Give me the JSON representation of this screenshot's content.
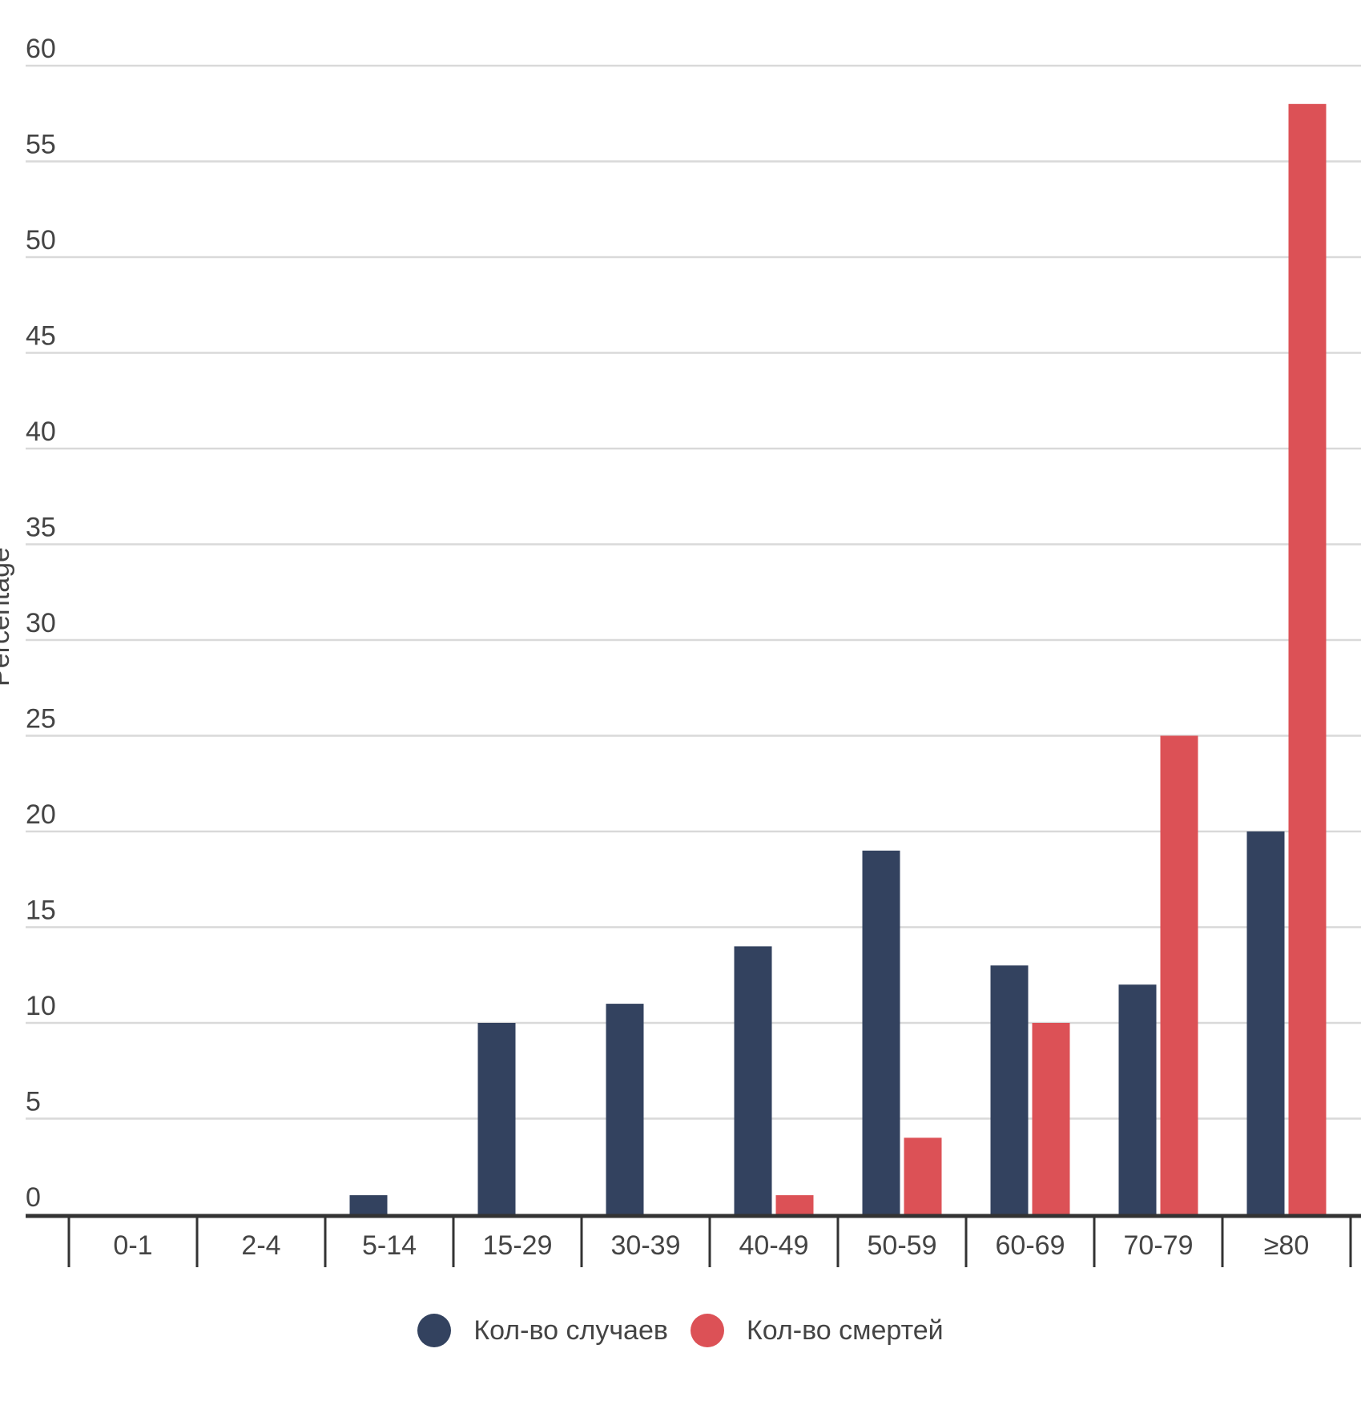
{
  "chart_data": {
    "type": "bar",
    "title": "",
    "xlabel": "",
    "ylabel": "Percentage",
    "ylim": [
      0,
      60
    ],
    "yticks": [
      0,
      5,
      10,
      15,
      20,
      25,
      30,
      35,
      40,
      45,
      50,
      55,
      60
    ],
    "categories": [
      "0-1",
      "2-4",
      "5-14",
      "15-29",
      "30-39",
      "40-49",
      "50-59",
      "60-69",
      "70-79",
      "≥80"
    ],
    "series": [
      {
        "name": "Кол-во случаев",
        "color": "#33425f",
        "values": [
          0,
          0,
          1,
          10,
          11,
          14,
          19,
          13,
          12,
          20
        ]
      },
      {
        "name": "Кол-во смертей",
        "color": "#dc5156",
        "values": [
          0,
          0,
          0,
          0,
          0,
          1,
          4,
          10,
          25,
          58
        ]
      }
    ],
    "grid": true,
    "legend_position": "bottom-center",
    "colors": {
      "grid": "#d9d9d9",
      "axis": "#333333",
      "text": "#444444",
      "title": "#c8924a"
    }
  }
}
